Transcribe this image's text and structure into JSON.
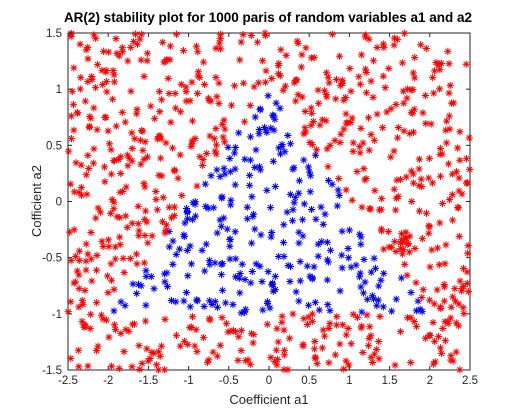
{
  "chart_data": {
    "type": "scatter",
    "title": "AR(2) stability plot for 1000 paris of random variables a1 and a2",
    "xlabel": "Coefficient a1",
    "ylabel": "Cofficient a2",
    "xlim": [
      -2.5,
      2.5
    ],
    "ylim": [
      -1.5,
      1.5
    ],
    "xticks": [
      -2.5,
      -2,
      -1.5,
      -1,
      -0.5,
      0,
      0.5,
      1,
      1.5,
      2,
      2.5
    ],
    "yticks": [
      -1.5,
      -1,
      -0.5,
      0,
      0.5,
      1,
      1.5
    ],
    "xtick_labels": [
      "-2.5",
      "-2",
      "-1.5",
      "-1",
      "-0.5",
      "0",
      "0.5",
      "1",
      "1.5",
      "2",
      "2.5"
    ],
    "ytick_labels": [
      "-1.5",
      "-1",
      "-0.5",
      "0",
      "0.5",
      "1",
      "1.5"
    ],
    "grid": false,
    "marker": "asterisk",
    "point_count": 1000,
    "seed": 7,
    "series": [
      {
        "color": "#ff0000",
        "rule": "outside stability triangle (a2 + a1 >= 1, a2 - a1 >= 1 or a2 <= -1)"
      },
      {
        "color": "#0000ff",
        "rule": "inside stability triangle (a2 + a1 < 1, a2 - a1 < 1, a2 > -1)"
      }
    ]
  }
}
